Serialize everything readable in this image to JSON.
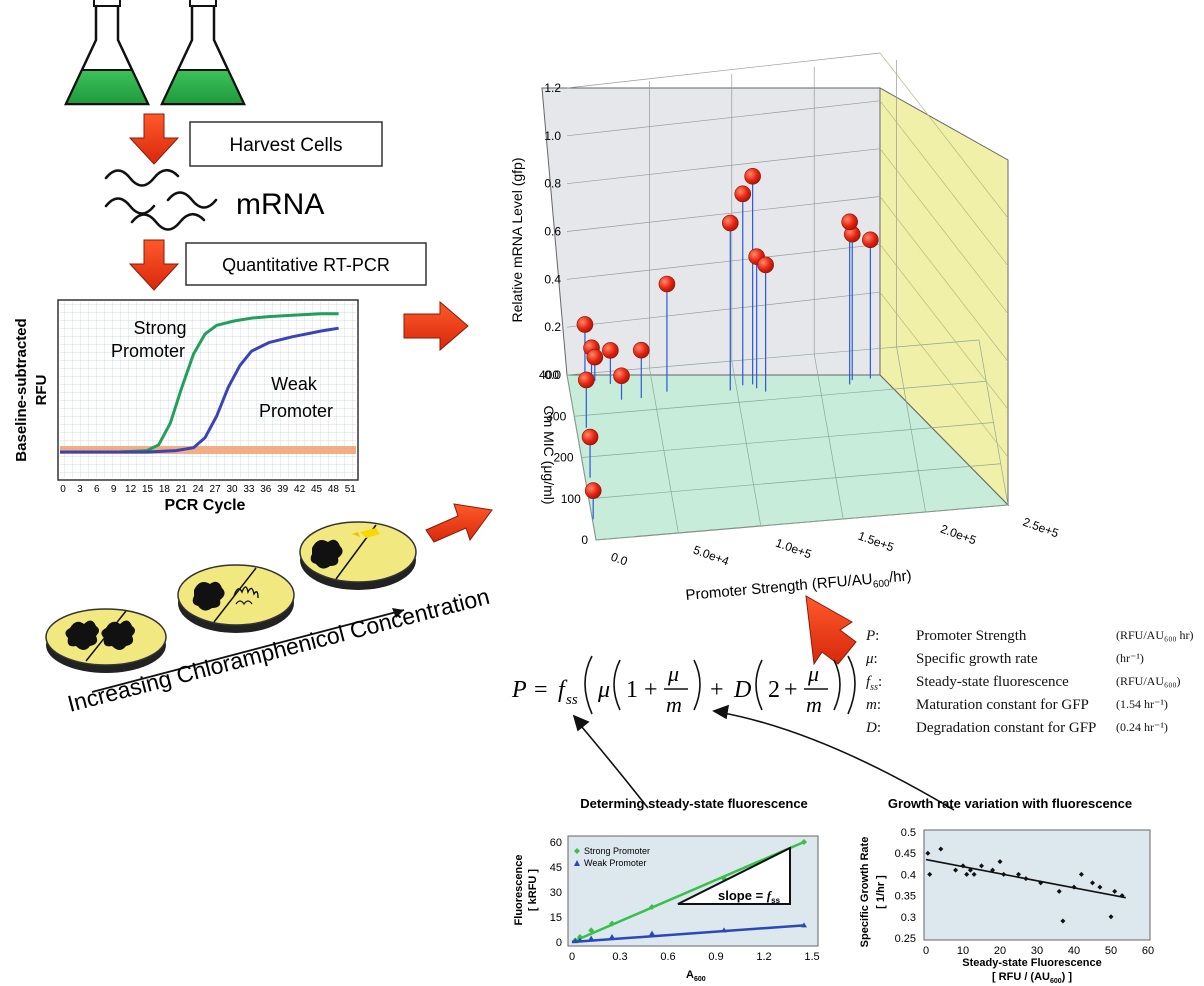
{
  "workflow": {
    "harvest_label": "Harvest Cells",
    "mrna_label": "mRNA",
    "rtpcr_label": "Quantitative RT-PCR",
    "plates_label": "Increasing Chloramphenicol Concentration"
  },
  "pcr_plot": {
    "ylabel_line1": "Baseline-subtracted",
    "ylabel_line2": "RFU",
    "xlabel": "PCR Cycle",
    "x_ticks": [
      "0",
      "3",
      "6",
      "9",
      "12",
      "15",
      "18",
      "21",
      "24",
      "27",
      "30",
      "33",
      "36",
      "39",
      "42",
      "45",
      "48",
      "51"
    ],
    "strong_label_1": "Strong",
    "strong_label_2": "Promoter",
    "weak_label_1": "Weak",
    "weak_label_2": "Promoter",
    "colors": {
      "strong": "#22a05a",
      "weak": "#3a43b8",
      "baseline": "#f0a070"
    }
  },
  "plot3d": {
    "ylabel": "Relative mRNA Level (gfp)",
    "zlabel": "Cm MIC (μg/ml)",
    "xlabel": "Promoter Strength (RFU/AU",
    "xlabel_sub": "600",
    "xlabel_end": "/hr)",
    "y_ticks": [
      "0.0",
      "0.2",
      "0.4",
      "0.6",
      "0.8",
      "1.0",
      "1.2"
    ],
    "z_ticks": [
      "0",
      "100",
      "200",
      "300",
      "400"
    ],
    "x_ticks": [
      "0.0",
      "5.0e+4",
      "1.0e+5",
      "1.5e+5",
      "2.0e+5",
      "2.5e+5"
    ]
  },
  "formula": {
    "P": "P",
    "eq": "=",
    "f": "f",
    "f_sub": "ss",
    "mu": "μ",
    "one": "1",
    "plus": "+",
    "m": "m",
    "D": "D",
    "two": "2"
  },
  "legend": [
    {
      "sym": "P",
      "sub": "",
      "desc": "Promoter Strength",
      "unit": "(RFU/AU₆₀₀ hr)"
    },
    {
      "sym": "μ",
      "sub": "",
      "desc": "Specific growth rate",
      "unit": "(hr⁻¹)"
    },
    {
      "sym": "f",
      "sub": "ss",
      "desc": "Steady-state fluorescence",
      "unit": "(RFU/AU₆₀₀)"
    },
    {
      "sym": "m",
      "sub": "",
      "desc": "Maturation constant for GFP",
      "unit": "(1.54 hr⁻¹)"
    },
    {
      "sym": "D",
      "sub": "",
      "desc": "Degradation constant for GFP",
      "unit": "(0.24 hr⁻¹)"
    }
  ],
  "fluor_plot": {
    "title": "Determing steady-state fluorescence",
    "ylabel_1": "Fluorescence",
    "ylabel_2": "[ kRFU ]",
    "xlabel": "A",
    "xlabel_sub": "600",
    "x_ticks": [
      "0",
      "0.3",
      "0.6",
      "0.9",
      "1.2",
      "1.5"
    ],
    "y_ticks": [
      "0",
      "15",
      "30",
      "45",
      "60"
    ],
    "legend_strong": "Strong Promoter",
    "legend_weak": "Weak Promoter",
    "slope_label": "slope = ",
    "slope_sym": "f",
    "slope_sub": "ss"
  },
  "growth_plot": {
    "title": "Growth rate variation with fluorescence",
    "ylabel_1": "Specific Growth Rate",
    "ylabel_2": "[ 1/hr ]",
    "xlabel_1": "Steady-state Fluorescence",
    "xlabel_2": "[ RFU / (AU",
    "xlabel_2_sub": "600",
    "xlabel_2_end": ") ]",
    "x_ticks": [
      "0",
      "10",
      "20",
      "30",
      "40",
      "50",
      "60"
    ],
    "y_ticks": [
      "0.25",
      "0.3",
      "0.35",
      "0.4",
      "0.45",
      "0.5"
    ]
  },
  "chart_data": [
    {
      "type": "line",
      "name": "pcr_amplification",
      "xlabel": "PCR Cycle",
      "ylabel": "Baseline-subtracted RFU",
      "xlim": [
        0,
        51
      ],
      "series": [
        {
          "name": "Strong Promoter",
          "x": [
            0,
            10,
            15,
            17,
            19,
            21,
            23,
            25,
            27,
            30,
            33,
            36,
            40,
            45,
            48
          ],
          "y": [
            0,
            0,
            0.01,
            0.05,
            0.2,
            0.45,
            0.68,
            0.82,
            0.88,
            0.91,
            0.93,
            0.94,
            0.95,
            0.96,
            0.96
          ]
        },
        {
          "name": "Weak Promoter",
          "x": [
            0,
            15,
            20,
            23,
            25,
            27,
            29,
            31,
            33,
            36,
            40,
            45,
            48
          ],
          "y": [
            0,
            0,
            0.01,
            0.03,
            0.1,
            0.25,
            0.45,
            0.6,
            0.7,
            0.76,
            0.8,
            0.84,
            0.86
          ]
        }
      ]
    },
    {
      "type": "scatter",
      "name": "3d_stem_plot",
      "xlabel": "Promoter Strength (RFU/AU600/hr)",
      "ylabel": "Relative mRNA Level (gfp)",
      "zlabel": "Cm MIC (μg/ml)",
      "xlim": [
        0,
        250000
      ],
      "ylim": [
        0,
        1.2
      ],
      "zlim": [
        0,
        400
      ],
      "points": [
        {
          "x": 500,
          "z": 50,
          "y": 0.12
        },
        {
          "x": 3000,
          "z": 150,
          "y": 0.17
        },
        {
          "x": 6000,
          "z": 270,
          "y": 0.2
        },
        {
          "x": 10000,
          "z": 380,
          "y": 0.24
        },
        {
          "x": 14000,
          "z": 380,
          "y": 0.14
        },
        {
          "x": 16000,
          "z": 380,
          "y": 0.1
        },
        {
          "x": 25000,
          "z": 370,
          "y": 0.14
        },
        {
          "x": 30000,
          "z": 330,
          "y": 0.1
        },
        {
          "x": 42000,
          "z": 330,
          "y": 0.2
        },
        {
          "x": 58000,
          "z": 340,
          "y": 0.45
        },
        {
          "x": 96000,
          "z": 330,
          "y": 0.7
        },
        {
          "x": 104000,
          "z": 340,
          "y": 0.8
        },
        {
          "x": 110000,
          "z": 340,
          "y": 0.87
        },
        {
          "x": 112000,
          "z": 330,
          "y": 0.55
        },
        {
          "x": 117000,
          "z": 320,
          "y": 0.53
        },
        {
          "x": 168000,
          "z": 320,
          "y": 0.68
        },
        {
          "x": 170000,
          "z": 330,
          "y": 0.61
        },
        {
          "x": 181000,
          "z": 330,
          "y": 0.58
        }
      ]
    },
    {
      "type": "scatter",
      "name": "fluorescence_vs_A600",
      "title": "Determing steady-state fluorescence",
      "xlabel": "A600",
      "ylabel": "Fluorescence [ kRFU ]",
      "xlim": [
        0,
        1.5
      ],
      "ylim": [
        0,
        60
      ],
      "series": [
        {
          "name": "Strong Promoter",
          "x": [
            0.02,
            0.05,
            0.12,
            0.25,
            0.5,
            0.95,
            1.45
          ],
          "y": [
            1,
            3,
            7,
            11,
            21,
            38,
            60
          ]
        },
        {
          "name": "Weak Promoter",
          "x": [
            0.02,
            0.05,
            0.12,
            0.25,
            0.5,
            0.95,
            1.45
          ],
          "y": [
            0.5,
            1,
            2,
            3,
            5,
            7,
            10
          ]
        }
      ]
    },
    {
      "type": "scatter",
      "name": "growth_rate_vs_fluorescence",
      "title": "Growth rate variation with fluorescence",
      "xlabel": "Steady-state Fluorescence [ RFU / (AU600) ]",
      "ylabel": "Specific Growth Rate [ 1/hr ]",
      "xlim": [
        0,
        60
      ],
      "ylim": [
        0.25,
        0.5
      ],
      "x": [
        0.5,
        1,
        4,
        8,
        10,
        11,
        12,
        13,
        15,
        18,
        20,
        21,
        25,
        27,
        31,
        36,
        37,
        40,
        42,
        45,
        47,
        50,
        51,
        53
      ],
      "y": [
        0.45,
        0.4,
        0.46,
        0.41,
        0.42,
        0.4,
        0.41,
        0.4,
        0.42,
        0.41,
        0.43,
        0.4,
        0.4,
        0.39,
        0.38,
        0.36,
        0.29,
        0.37,
        0.4,
        0.38,
        0.37,
        0.3,
        0.36,
        0.35
      ]
    }
  ]
}
